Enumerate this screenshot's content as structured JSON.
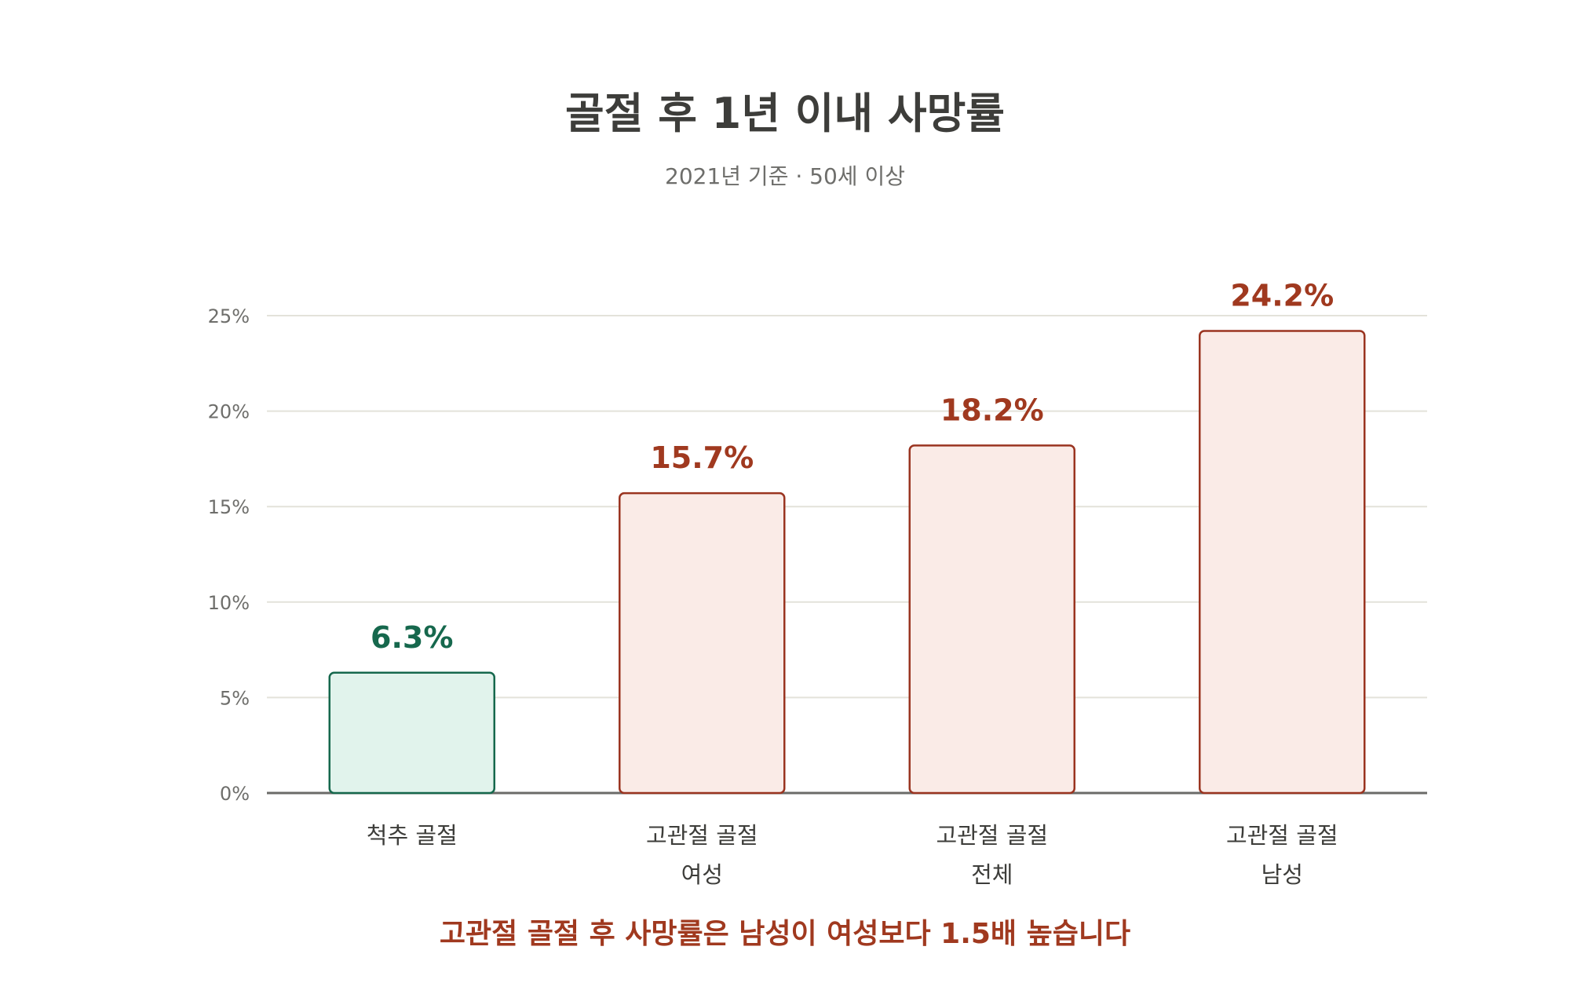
{
  "chart_data": {
    "type": "bar",
    "title": "골절 후 1년 이내 사망률",
    "subtitle": "2021년 기준 · 50세 이상",
    "categories": [
      [
        "척추 골절"
      ],
      [
        "고관절 골절",
        "여성"
      ],
      [
        "고관절 골절",
        "전체"
      ],
      [
        "고관절 골절",
        "남성"
      ]
    ],
    "values": [
      6.3,
      15.7,
      18.2,
      24.2
    ],
    "value_labels": [
      "6.3%",
      "15.7%",
      "18.2%",
      "24.2%"
    ],
    "yticks": [
      "0%",
      "5%",
      "10%",
      "15%",
      "20%",
      "25%"
    ],
    "ylim": [
      0,
      25
    ],
    "grid": true,
    "colors": {
      "spine_fill": "#e1f3ec",
      "spine_stroke": "#16684d",
      "spine_text": "#16684d",
      "hip_fill": "#faebe7",
      "hip_stroke": "#9a3420",
      "hip_text": "#a0391f",
      "grid": "#e3e2da",
      "axis": "#6b6b68",
      "tick_text": "#6e6e6b",
      "category_text": "#3d3d3a"
    },
    "note": "고관절 골절 후 사망률은 남성이 여성보다 1.5배 높습니다"
  }
}
